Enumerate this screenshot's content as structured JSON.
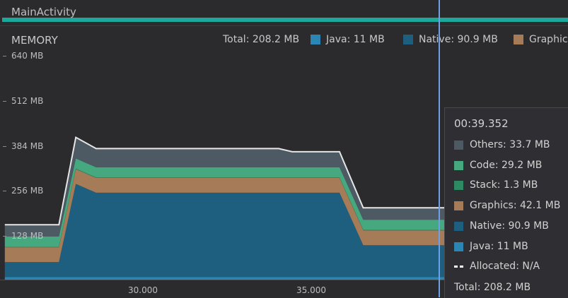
{
  "activity": {
    "name": "MainActivity"
  },
  "memory": {
    "title": "MEMORY",
    "legend": {
      "total": "Total: 208.2 MB",
      "java": "Java: 11 MB",
      "native": "Native: 90.9 MB",
      "graphics": "Graphic"
    },
    "y_labels": [
      "640 MB",
      "512 MB",
      "384 MB",
      "256 MB",
      "128 MB"
    ],
    "x_labels": [
      "30.000",
      "35.000"
    ]
  },
  "tooltip": {
    "time": "00:39.352",
    "others": "Others: 33.7 MB",
    "code": "Code: 29.2 MB",
    "stack": "Stack: 1.3 MB",
    "graphics": "Graphics: 42.1 MB",
    "native": "Native: 90.9 MB",
    "java": "Java: 11 MB",
    "allocated": "Allocated: N/A",
    "total": "Total: 208.2 MB"
  },
  "colors": {
    "others": "#4e5a63",
    "code": "#45a87f",
    "stack": "#2e8a62",
    "graphics": "#a67c58",
    "native": "#1e5f80",
    "java": "#2c86b4",
    "activity": "#1aa99a",
    "cursor": "#6ea0e6"
  },
  "chart_data": {
    "type": "area",
    "stacked": true,
    "x": [
      26.0,
      27.6,
      28.1,
      28.7,
      31.0,
      34.1,
      34.5,
      35.9,
      36.6,
      39.352
    ],
    "series": [
      {
        "name": "Java",
        "values": [
          11,
          11,
          11,
          11,
          11,
          11,
          11,
          11,
          11,
          11
        ]
      },
      {
        "name": "Native",
        "values": [
          43,
          43,
          265,
          240,
          240,
          240,
          240,
          240,
          91,
          91
        ]
      },
      {
        "name": "Graphics",
        "values": [
          42,
          42,
          42,
          42,
          42,
          42,
          42,
          42,
          42,
          42
        ]
      },
      {
        "name": "Stack",
        "values": [
          1.3,
          1.3,
          1.3,
          1.3,
          1.3,
          1.3,
          1.3,
          1.3,
          1.3,
          1.3
        ]
      },
      {
        "name": "Code",
        "values": [
          29,
          29,
          29,
          29,
          29,
          29,
          29,
          29,
          29,
          29
        ]
      },
      {
        "name": "Others",
        "values": [
          33.7,
          33.7,
          60,
          53,
          53,
          53,
          44,
          44,
          33.7,
          33.7
        ]
      }
    ],
    "ylim": [
      0,
      640
    ],
    "yticks": [
      128,
      256,
      384,
      512,
      640
    ],
    "xticks": [
      30.0,
      35.0
    ]
  }
}
